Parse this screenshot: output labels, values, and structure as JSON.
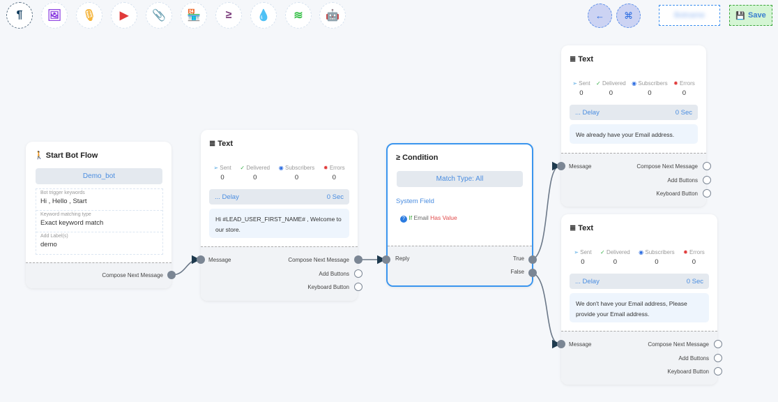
{
  "toolbar": {
    "items": [
      {
        "name": "paragraph-icon",
        "glyph": "¶",
        "color": "#0d3a5c"
      },
      {
        "name": "image-icon",
        "glyph": "🖼",
        "color": "#8a3be0"
      },
      {
        "name": "microphone-icon",
        "glyph": "🎙",
        "color": "#f5b43a"
      },
      {
        "name": "youtube-icon",
        "glyph": "▶",
        "color": "#e03a3a"
      },
      {
        "name": "paperclip-icon",
        "glyph": "📎",
        "color": "#2a9a4a"
      },
      {
        "name": "store-icon",
        "glyph": "🏪",
        "color": "#f5822a"
      },
      {
        "name": "greater-equal-icon",
        "glyph": "≥",
        "color": "#7a3a7a"
      },
      {
        "name": "drop-icon",
        "glyph": "💧",
        "color": "#d01a3a"
      },
      {
        "name": "stack-icon",
        "glyph": "≋",
        "color": "#3ac04a"
      },
      {
        "name": "robot-icon",
        "glyph": "🤖",
        "color": "#1a2ae0"
      }
    ],
    "back_icon": "←",
    "fit_icon": "⌘",
    "blurred_text": "Botname",
    "save_label": "Save"
  },
  "start": {
    "title": "Start Bot Flow",
    "bot": "Demo_bot",
    "fields": [
      {
        "label": "Bot trigger keywords",
        "value": "Hi , Hello , Start"
      },
      {
        "label": "Keyword matching type",
        "value": "Exact keyword match"
      },
      {
        "label": "Add Label(s)",
        "value": "demo"
      }
    ],
    "out": "Compose Next Message"
  },
  "condition": {
    "title": "Condition",
    "match": "Match Type: All",
    "field_type": "System Field",
    "rule_if": "If",
    "rule_field": "Email",
    "rule_op": "Has Value",
    "in": "Reply",
    "true": "True",
    "false": "False"
  },
  "stat_labels": {
    "sent": "Sent",
    "delivered": "Delivered",
    "subscribers": "Subscribers",
    "errors": "Errors"
  },
  "text_nodes": [
    {
      "title": "Text",
      "sent": "0",
      "delivered": "0",
      "subscribers": "0",
      "errors": "0",
      "delay": "... Delay",
      "delay_val": "0 Sec",
      "message": "Hi  #LEAD_USER_FIRST_NAME# , Welcome to our store.",
      "in": "Message",
      "out1": "Compose Next Message",
      "out2": "Add Buttons",
      "out3": "Keyboard Button"
    },
    {
      "title": "Text",
      "sent": "0",
      "delivered": "0",
      "subscribers": "0",
      "errors": "0",
      "delay": "... Delay",
      "delay_val": "0 Sec",
      "message": "We already have your Email address.",
      "in": "Message",
      "out1": "Compose Next Message",
      "out2": "Add Buttons",
      "out3": "Keyboard Button"
    },
    {
      "title": "Text",
      "sent": "0",
      "delivered": "0",
      "subscribers": "0",
      "errors": "0",
      "delay": "... Delay",
      "delay_val": "0 Sec",
      "message": "We don't have your Email address, Please provide your Email address.",
      "in": "Message",
      "out1": "Compose Next Message",
      "out2": "Add Buttons",
      "out3": "Keyboard Button"
    }
  ],
  "colors": {
    "accent": "#3a95ee",
    "port": "#7b8694",
    "wire": "#6b7888"
  }
}
